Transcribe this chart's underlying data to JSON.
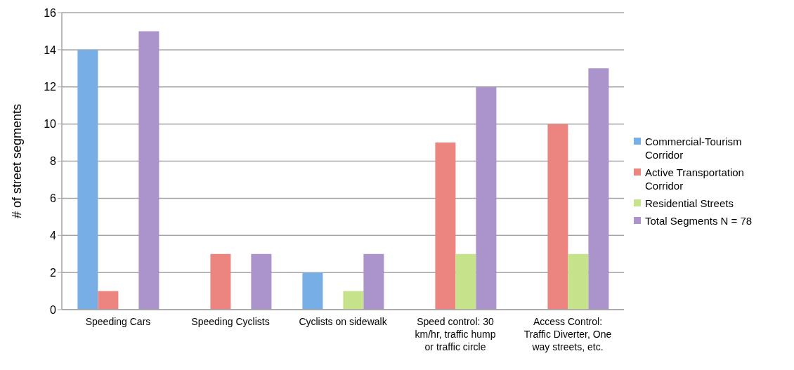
{
  "chart_data": {
    "type": "bar",
    "ylabel": "# of street segments",
    "categories": [
      "Speeding Cars",
      "Speeding Cyclists",
      "Cyclists on sidewalk",
      "Speed control: 30 km/hr, traffic hump or traffic circle",
      "Access Control: Traffic Diverter, One way streets, etc."
    ],
    "series": [
      {
        "name": "Commercial-Tourism Corridor",
        "color": "#78aee6",
        "values": [
          14,
          0,
          2,
          0,
          0
        ]
      },
      {
        "name": "Active Transportation Corridor",
        "color": "#ec8580",
        "values": [
          1,
          3,
          0,
          9,
          10
        ]
      },
      {
        "name": "Residential Streets",
        "color": "#c6e38c",
        "values": [
          0,
          0,
          1,
          3,
          3
        ]
      },
      {
        "name": "Total Segments N = 78",
        "color": "#ab93cc",
        "values": [
          15,
          3,
          3,
          12,
          13
        ]
      }
    ],
    "ylim": [
      0,
      16
    ],
    "yticks": [
      0,
      2,
      4,
      6,
      8,
      10,
      12,
      14,
      16
    ],
    "grid": "y",
    "legend": "right"
  }
}
